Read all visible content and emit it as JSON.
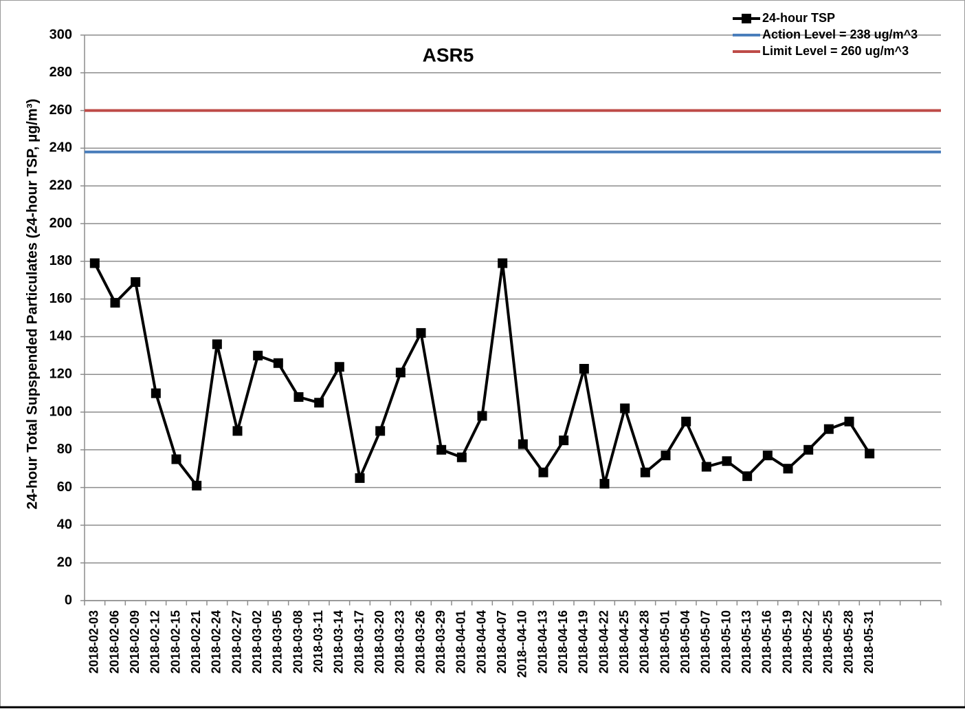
{
  "chart_data": {
    "type": "line",
    "title": "ASR5",
    "y_label": "24-hour Total Supspended Particulates (24-hour TSP, µg/m³)",
    "categories": [
      "2018-02-03",
      "2018-02-06",
      "2018-02-09",
      "2018-02-12",
      "2018-02-15",
      "2018-02-21",
      "2018-02-24",
      "2018-02-27",
      "2018-03-02",
      "2018-03-05",
      "2018-03-08",
      "2018-03-11",
      "2018-03-14",
      "2018-03-17",
      "2018-03-20",
      "2018-03-23",
      "2018-03-26",
      "2018-03-29",
      "2018-04-01",
      "2018-04-04",
      "2018-04-07",
      "2018--04-10",
      "2018-04-13",
      "2018-04-16",
      "2018-04-19",
      "2018-04-22",
      "2018-04-25",
      "2018-04-28",
      "2018-05-01",
      "2018-05-04",
      "2018-05-07",
      "2018-05-10",
      "2018-05-13",
      "2018-05-16",
      "2018-05-19",
      "2018-05-22",
      "2018-05-25",
      "2018-05-28",
      "2018-05-31",
      null,
      null,
      null
    ],
    "series": [
      {
        "name": "24-hour TSP",
        "color": "#000000",
        "values": [
          179,
          158,
          169,
          110,
          75,
          61,
          136,
          90,
          130,
          126,
          108,
          105,
          124,
          65,
          90,
          121,
          142,
          80,
          76,
          98,
          179,
          83,
          68,
          85,
          123,
          62,
          102,
          68,
          77,
          95,
          71,
          74,
          66,
          77,
          70,
          80,
          91,
          95,
          78,
          null,
          null,
          null
        ]
      }
    ],
    "reference_lines": [
      {
        "name": "Action Level = 238 ug/m^3",
        "color": "#4a7ebb",
        "value": 238
      },
      {
        "name": "Limit Level = 260 ug/m^3",
        "color": "#be4b48",
        "value": 260
      }
    ],
    "ylim": [
      0,
      300
    ],
    "yticks": [
      0,
      20,
      40,
      60,
      80,
      100,
      120,
      140,
      160,
      180,
      200,
      220,
      240,
      260,
      280,
      300
    ],
    "grid": true,
    "legend": "upper right"
  }
}
